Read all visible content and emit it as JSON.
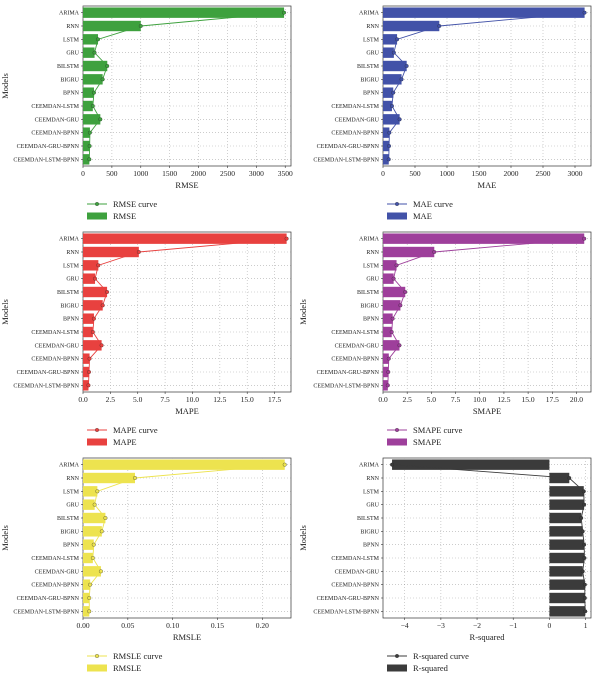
{
  "chart_data": [
    {
      "type": "bar",
      "orientation": "horizontal",
      "ylabel": "Models",
      "xlabel": "RMSE",
      "color": "#3ea13e",
      "categories": [
        "ARIMA",
        "RNN",
        "LSTM",
        "GRU",
        "BILSTM",
        "BIGRU",
        "BPNN",
        "CEEMDAN-LSTM",
        "CEEMDAN-GRU",
        "CEEMDAN-BPNN",
        "CEEMDAN-GRU-BPNN",
        "CEEMDAN-LSTM-BPNN"
      ],
      "values": [
        3480,
        1000,
        260,
        200,
        420,
        340,
        190,
        170,
        300,
        120,
        115,
        110
      ],
      "xlim": [
        0,
        3600
      ],
      "xticks": [
        0,
        500,
        1000,
        1500,
        2000,
        2500,
        3000,
        3500
      ],
      "xtick_labels": [
        "0",
        "500",
        "1000",
        "1500",
        "2000",
        "2500",
        "3000",
        "3500"
      ],
      "legend": {
        "curve": "RMSE curve",
        "bar": "RMSE"
      }
    },
    {
      "type": "bar",
      "orientation": "horizontal",
      "ylabel": "",
      "xlabel": "MAE",
      "color": "#4252a8",
      "categories": [
        "ARIMA",
        "RNN",
        "LSTM",
        "GRU",
        "BILSTM",
        "BIGRU",
        "BPNN",
        "CEEMDAN-LSTM",
        "CEEMDAN-GRU",
        "CEEMDAN-BPNN",
        "CEEMDAN-GRU-BPNN",
        "CEEMDAN-LSTM-BPNN"
      ],
      "values": [
        3150,
        880,
        220,
        170,
        370,
        290,
        160,
        140,
        260,
        100,
        95,
        90
      ],
      "xlim": [
        0,
        3250
      ],
      "xticks": [
        0,
        500,
        1000,
        1500,
        2000,
        2500,
        3000
      ],
      "xtick_labels": [
        "0",
        "500",
        "1000",
        "1500",
        "2000",
        "2500",
        "3000"
      ],
      "legend": {
        "curve": "MAE curve",
        "bar": "MAE"
      }
    },
    {
      "type": "bar",
      "orientation": "horizontal",
      "ylabel": "Models",
      "xlabel": "MAPE",
      "color": "#e8413f",
      "categories": [
        "ARIMA",
        "RNN",
        "LSTM",
        "GRU",
        "BILSTM",
        "BIGRU",
        "BPNN",
        "CEEMDAN-LSTM",
        "CEEMDAN-GRU",
        "CEEMDAN-BPNN",
        "CEEMDAN-GRU-BPNN",
        "CEEMDAN-LSTM-BPNN"
      ],
      "values": [
        18.6,
        5.1,
        1.4,
        1.1,
        2.2,
        1.8,
        1.0,
        0.9,
        1.7,
        0.6,
        0.55,
        0.5
      ],
      "xlim": [
        0,
        19
      ],
      "xticks": [
        0,
        2.5,
        5.0,
        7.5,
        10.0,
        12.5,
        15.0,
        17.5
      ],
      "xtick_labels": [
        "0.0",
        "2.5",
        "5.0",
        "7.5",
        "10.0",
        "12.5",
        "15.0",
        "17.5"
      ],
      "legend": {
        "curve": "MAPE curve",
        "bar": "MAPE"
      }
    },
    {
      "type": "bar",
      "orientation": "horizontal",
      "ylabel": "Models",
      "xlabel": "SMAPE",
      "color": "#9e3f9b",
      "categories": [
        "ARIMA",
        "RNN",
        "LSTM",
        "GRU",
        "BILSTM",
        "BIGRU",
        "BPNN",
        "CEEMDAN-LSTM",
        "CEEMDAN-GRU",
        "CEEMDAN-BPNN",
        "CEEMDAN-GRU-BPNN",
        "CEEMDAN-LSTM-BPNN"
      ],
      "values": [
        20.8,
        5.3,
        1.4,
        1.1,
        2.3,
        1.8,
        1.0,
        0.9,
        1.7,
        0.6,
        0.55,
        0.5
      ],
      "xlim": [
        0,
        21.5
      ],
      "xticks": [
        0,
        2.5,
        5.0,
        7.5,
        10.0,
        12.5,
        15.0,
        17.5,
        20.0
      ],
      "xtick_labels": [
        "0.0",
        "2.5",
        "5.0",
        "7.5",
        "10.0",
        "12.5",
        "15.0",
        "17.5",
        "20.0"
      ],
      "legend": {
        "curve": "SMAPE curve",
        "bar": "SMAPE"
      }
    },
    {
      "type": "bar",
      "orientation": "horizontal",
      "ylabel": "Models",
      "xlabel": "RMSLE",
      "color": "#ede34f",
      "categories": [
        "ARIMA",
        "RNN",
        "LSTM",
        "GRU",
        "BILSTM",
        "BIGRU",
        "BPNN",
        "CEEMDAN-LSTM",
        "CEEMDAN-GRU",
        "CEEMDAN-BPNN",
        "CEEMDAN-GRU-BPNN",
        "CEEMDAN-LSTM-BPNN"
      ],
      "values": [
        0.225,
        0.058,
        0.016,
        0.013,
        0.025,
        0.021,
        0.012,
        0.011,
        0.02,
        0.008,
        0.007,
        0.007
      ],
      "xlim": [
        0,
        0.232
      ],
      "xticks": [
        0,
        0.05,
        0.1,
        0.15,
        0.2
      ],
      "xtick_labels": [
        "0.00",
        "0.05",
        "0.10",
        "0.15",
        "0.20"
      ],
      "legend": {
        "curve": "RMSLE curve",
        "bar": "RMSLE"
      }
    },
    {
      "type": "bar",
      "orientation": "horizontal",
      "ylabel": "Models",
      "xlabel": "R-squared",
      "color": "#3b3b3b",
      "categories": [
        "ARIMA",
        "RNN",
        "LSTM",
        "GRU",
        "BILSTM",
        "BIGRU",
        "BPNN",
        "CEEMDAN-LSTM",
        "CEEMDAN-GRU",
        "CEEMDAN-BPNN",
        "CEEMDAN-GRU-BPNN",
        "CEEMDAN-LSTM-BPNN"
      ],
      "values": [
        -4.35,
        0.55,
        0.95,
        0.96,
        0.88,
        0.92,
        0.96,
        0.97,
        0.92,
        0.98,
        0.98,
        0.99
      ],
      "xlim": [
        -4.6,
        1.15
      ],
      "xticks": [
        -4,
        -3,
        -2,
        -1,
        0,
        1
      ],
      "xtick_labels": [
        "−4",
        "−3",
        "−2",
        "−1",
        "0",
        "1"
      ],
      "legend": {
        "curve": "R-squared curve",
        "bar": "R-squared"
      }
    }
  ]
}
